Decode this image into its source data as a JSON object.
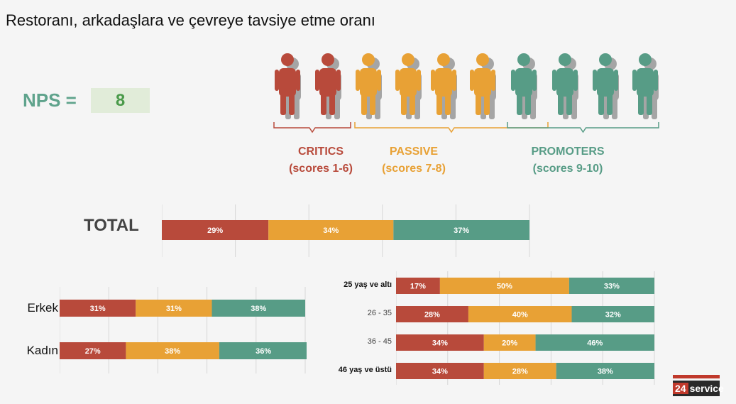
{
  "title": "Restoranı, arkadaşlara ve çevreye tavsiye etme oranı",
  "nps": {
    "label": "NPS =",
    "value": "8"
  },
  "colors": {
    "critics": "#b84a3b",
    "passive": "#e8a135",
    "promoters": "#579c86"
  },
  "segments": [
    {
      "name": "CRITICS",
      "scores": "(scores 1-6)",
      "color": "#b84a3b",
      "count": 2
    },
    {
      "name": "PASSIVE",
      "scores": "(scores 7-8)",
      "color": "#e8a135",
      "count": 4
    },
    {
      "name": "PROMOTERS",
      "scores": "(scores 9-10)",
      "color": "#579c86",
      "count": 4
    }
  ],
  "chart_data": [
    {
      "type": "bar",
      "stacked": true,
      "orientation": "horizontal",
      "categories": [
        "TOTAL"
      ],
      "series": [
        {
          "name": "CRITICS",
          "values": [
            29
          ]
        },
        {
          "name": "PASSIVE",
          "values": [
            34
          ]
        },
        {
          "name": "PROMOTERS",
          "values": [
            37
          ]
        }
      ],
      "xlim": [
        0,
        100
      ]
    },
    {
      "type": "bar",
      "stacked": true,
      "orientation": "horizontal",
      "categories": [
        "Erkek",
        "Kadın"
      ],
      "series": [
        {
          "name": "CRITICS",
          "values": [
            31,
            27
          ]
        },
        {
          "name": "PASSIVE",
          "values": [
            31,
            38
          ]
        },
        {
          "name": "PROMOTERS",
          "values": [
            38,
            36
          ]
        }
      ],
      "xlim": [
        0,
        100
      ]
    },
    {
      "type": "bar",
      "stacked": true,
      "orientation": "horizontal",
      "categories": [
        "25 yaş ve altı",
        "26 - 35",
        "36 - 45",
        "46 yaş ve üstü"
      ],
      "series": [
        {
          "name": "CRITICS",
          "values": [
            17,
            28,
            34,
            34
          ]
        },
        {
          "name": "PASSIVE",
          "values": [
            50,
            40,
            20,
            28
          ]
        },
        {
          "name": "PROMOTERS",
          "values": [
            33,
            32,
            46,
            38
          ]
        }
      ],
      "xlim": [
        0,
        100
      ]
    }
  ],
  "logo": {
    "number": "24",
    "text": "service"
  }
}
